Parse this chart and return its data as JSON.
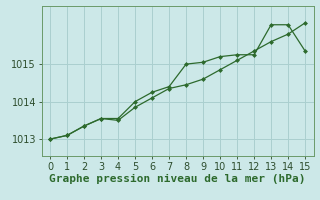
{
  "line1_x": [
    0,
    1,
    2,
    3,
    4,
    5,
    6,
    7,
    8,
    9,
    10,
    11,
    12,
    13,
    14,
    15
  ],
  "line1_y": [
    1013.0,
    1013.1,
    1013.35,
    1013.55,
    1013.55,
    1014.0,
    1014.25,
    1014.4,
    1015.0,
    1015.05,
    1015.2,
    1015.25,
    1015.25,
    1016.05,
    1016.05,
    1015.35
  ],
  "line2_x": [
    0,
    1,
    2,
    3,
    4,
    5,
    6,
    7,
    8,
    9,
    10,
    11,
    12,
    13,
    14,
    15
  ],
  "line2_y": [
    1013.0,
    1013.1,
    1013.35,
    1013.55,
    1013.5,
    1013.85,
    1014.1,
    1014.35,
    1014.45,
    1014.6,
    1014.85,
    1015.1,
    1015.35,
    1015.6,
    1015.8,
    1016.1
  ],
  "line_color": "#2d6a2d",
  "bg_color": "#cce8e8",
  "grid_color": "#aacfcf",
  "xlabel": "Graphe pression niveau de la mer (hPa)",
  "ylim": [
    1012.55,
    1016.55
  ],
  "xlim": [
    -0.5,
    15.5
  ],
  "yticks": [
    1013,
    1014,
    1015
  ],
  "xticks": [
    0,
    1,
    2,
    3,
    4,
    5,
    6,
    7,
    8,
    9,
    10,
    11,
    12,
    13,
    14,
    15
  ],
  "xlabel_fontsize": 8,
  "tick_fontsize": 7
}
